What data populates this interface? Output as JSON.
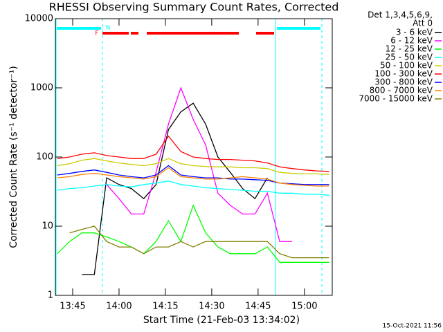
{
  "chart_data": {
    "type": "line",
    "title": "RHESSI Observing Summary Count Rates, Corrected",
    "xlabel": "Start Time (21-Feb-03 13:34:02)",
    "ylabel": "Corrected Count Rate (s⁻¹ detector⁻¹)",
    "legend_title": [
      "Det 1,3,4,5,6,9,",
      "Att 0"
    ],
    "footer": "15-Oct-2021 11:56",
    "annotations": [
      "F",
      "N"
    ],
    "log_y": true,
    "xlim": [
      39.4,
      129
    ],
    "ylim": [
      1,
      10000
    ],
    "xticks": [
      {
        "value": 45,
        "label": "13:45"
      },
      {
        "value": 60,
        "label": "14:00"
      },
      {
        "value": 75,
        "label": "14:15"
      },
      {
        "value": 90,
        "label": "14:30"
      },
      {
        "value": 105,
        "label": "14:45"
      },
      {
        "value": 120,
        "label": "15:00"
      }
    ],
    "yticks": [
      1,
      10,
      100,
      1000,
      10000
    ],
    "x": [
      40,
      44,
      48,
      52,
      56,
      60,
      64,
      68,
      72,
      76,
      80,
      84,
      88,
      92,
      96,
      100,
      104,
      108,
      112,
      116,
      120,
      124,
      128
    ],
    "series": [
      {
        "name": "3 - 6 keV",
        "color": "#000000",
        "values": [
          null,
          null,
          2,
          2,
          50,
          40,
          35,
          25,
          40,
          250,
          450,
          600,
          300,
          100,
          60,
          35,
          25,
          50,
          null,
          null,
          null,
          null,
          null
        ]
      },
      {
        "name": "6 - 12 keV",
        "color": "#ff00ff",
        "values": [
          null,
          null,
          null,
          null,
          40,
          25,
          15,
          15,
          60,
          300,
          1000,
          350,
          150,
          30,
          20,
          15,
          15,
          30,
          6,
          6,
          null,
          null,
          null
        ]
      },
      {
        "name": "12 - 25 keV",
        "color": "#00ff00",
        "values": [
          4,
          6,
          8,
          8,
          7,
          6,
          5,
          4,
          6,
          12,
          6,
          20,
          8,
          5,
          4,
          4,
          4,
          5,
          3,
          3,
          3,
          3,
          3
        ]
      },
      {
        "name": "25 - 50 keV",
        "color": "#00ffff",
        "values": [
          33,
          35,
          36,
          38,
          40,
          38,
          37,
          40,
          42,
          45,
          40,
          38,
          36,
          35,
          34,
          33,
          32,
          32,
          30,
          30,
          29,
          29,
          28
        ]
      },
      {
        "name": "50 - 100 keV",
        "color": "#cccc00",
        "values": [
          75,
          80,
          90,
          95,
          88,
          82,
          78,
          75,
          80,
          95,
          80,
          75,
          73,
          72,
          72,
          70,
          70,
          68,
          60,
          58,
          57,
          57,
          56
        ]
      },
      {
        "name": "100 - 300 keV",
        "color": "#ff0000",
        "values": [
          95,
          100,
          110,
          115,
          105,
          100,
          95,
          95,
          110,
          200,
          120,
          100,
          95,
          92,
          92,
          90,
          88,
          82,
          72,
          68,
          65,
          63,
          62
        ]
      },
      {
        "name": "300 - 800 keV",
        "color": "#0000ff",
        "values": [
          55,
          58,
          62,
          65,
          60,
          55,
          52,
          50,
          55,
          75,
          55,
          52,
          50,
          50,
          48,
          48,
          47,
          46,
          42,
          41,
          40,
          40,
          40
        ]
      },
      {
        "name": "800 - 7000 keV",
        "color": "#ff8000",
        "values": [
          50,
          52,
          56,
          58,
          55,
          52,
          50,
          48,
          52,
          70,
          52,
          50,
          48,
          48,
          50,
          52,
          50,
          48,
          42,
          40,
          39,
          38,
          38
        ]
      },
      {
        "name": "7000 - 15000 keV",
        "color": "#808000",
        "values": [
          null,
          8,
          9,
          10,
          6,
          5,
          5,
          4,
          5,
          5,
          6,
          5,
          6,
          6,
          6,
          6,
          6,
          6,
          4,
          3.5,
          3.5,
          3.5,
          3.5
        ]
      }
    ]
  }
}
